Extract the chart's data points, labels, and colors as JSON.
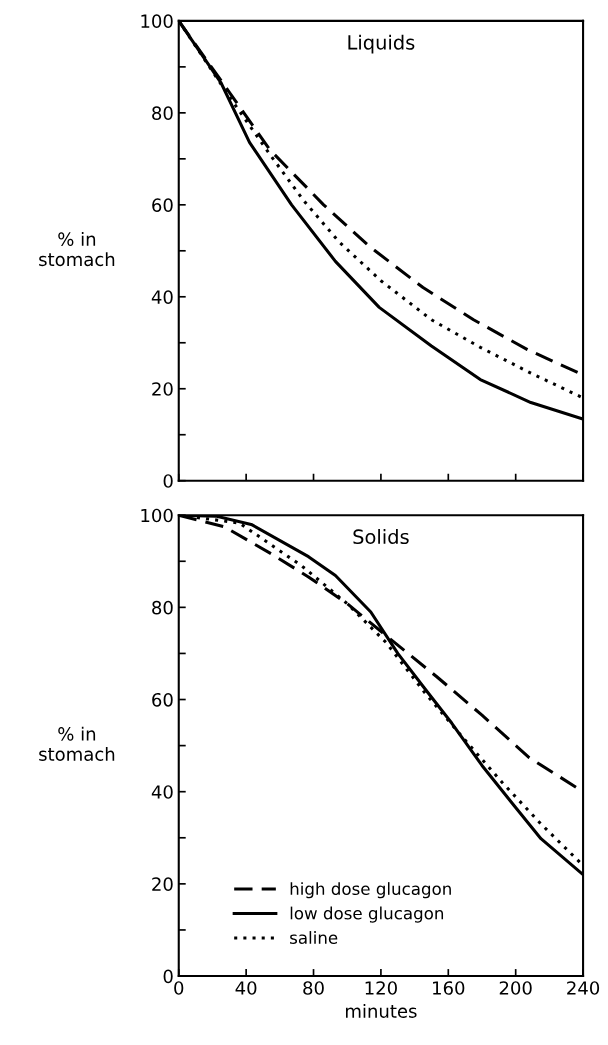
{
  "chart_data": [
    {
      "type": "line",
      "title": "Liquids",
      "ylabel": "% in\nstomach",
      "xlim": [
        0,
        240
      ],
      "ylim": [
        0,
        100
      ],
      "xticks": [
        {
          "value": 0,
          "label": null
        },
        {
          "value": 40,
          "label": null
        },
        {
          "value": 80,
          "label": null
        },
        {
          "value": 120,
          "label": null
        },
        {
          "value": 160,
          "label": null
        },
        {
          "value": 200,
          "label": null
        },
        {
          "value": 240,
          "label": null
        }
      ],
      "yticks": [
        0,
        {
          "value": 10,
          "label": null
        },
        20,
        {
          "value": 30,
          "label": null
        },
        40,
        {
          "value": 50,
          "label": null
        },
        60,
        {
          "value": 70,
          "label": null
        },
        80,
        {
          "value": 90,
          "label": null
        },
        100
      ],
      "tick_labels": "y",
      "grid": false,
      "legend": false,
      "series": [
        {
          "color": "#000000",
          "line_style": "dashed",
          "x": [
            0,
            29,
            54,
            86,
            113,
            145,
            175,
            207,
            240
          ],
          "values": [
            100,
            85,
            72,
            60,
            51,
            42,
            35,
            28.5,
            23
          ]
        },
        {
          "color": "#000000",
          "line_style": "solid",
          "x": [
            0,
            25,
            42,
            67,
            93,
            119,
            150,
            179,
            209,
            240
          ],
          "values": [
            100,
            86.6,
            73.6,
            60,
            47.7,
            37.7,
            29.3,
            22,
            17,
            13.4
          ]
        },
        {
          "color": "#000000",
          "line_style": "dotted",
          "x": [
            0,
            31,
            54,
            74,
            95,
            120,
            150,
            179,
            209,
            240
          ],
          "values": [
            100,
            83,
            71,
            61,
            52,
            43.5,
            35,
            29,
            23.4,
            18
          ]
        }
      ]
    },
    {
      "type": "line",
      "title": "Solids",
      "ylabel": "% in\nstomach",
      "xlabel": "minutes",
      "xlim": [
        0,
        240
      ],
      "ylim": [
        0,
        100
      ],
      "xticks": [
        0,
        40,
        80,
        120,
        160,
        200,
        240
      ],
      "yticks": [
        0,
        {
          "value": 10,
          "label": null
        },
        20,
        {
          "value": 30,
          "label": null
        },
        40,
        {
          "value": 50,
          "label": null
        },
        60,
        {
          "value": 70,
          "label": null
        },
        80,
        {
          "value": 90,
          "label": null
        },
        100
      ],
      "grid": false,
      "legend": "bottom left",
      "series": [
        {
          "name": "high dose glucagon",
          "color": "#000000",
          "line_style": "dashed",
          "x": [
            0,
            27,
            55,
            77,
            100,
            128,
            153,
            180,
            208,
            240
          ],
          "values": [
            100,
            97.5,
            91.6,
            86.6,
            80.8,
            72.4,
            65,
            56.6,
            47.4,
            40
          ]
        },
        {
          "name": "low dose glucagon",
          "color": "#000000",
          "line_style": "solid",
          "x": [
            0,
            22,
            43,
            77,
            93,
            114,
            130,
            146,
            162,
            180,
            199,
            215,
            240
          ],
          "values": [
            100,
            99.8,
            98,
            91,
            86.9,
            79,
            70,
            62.4,
            54.9,
            45.7,
            37,
            29.8,
            22
          ]
        },
        {
          "name": "saline",
          "color": "#000000",
          "line_style": "dotted",
          "x": [
            0,
            36,
            73,
            100,
            123,
            146,
            169,
            192,
            215,
            240
          ],
          "values": [
            100,
            98.3,
            89,
            80.8,
            72.4,
            61.5,
            51.6,
            42,
            33,
            24
          ]
        }
      ]
    }
  ]
}
